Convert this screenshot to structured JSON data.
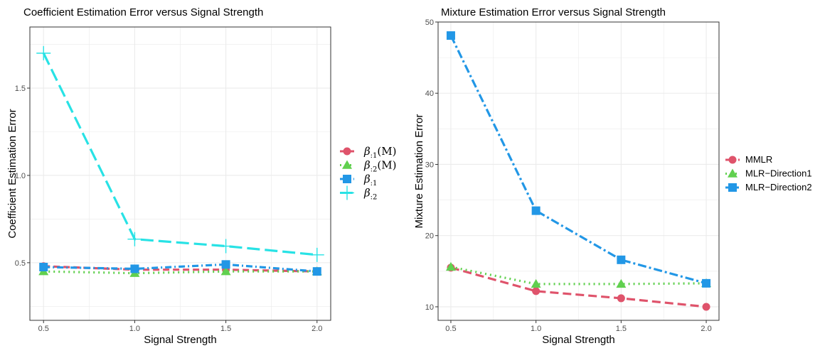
{
  "colors": {
    "red": "#DF536B",
    "green": "#61D04F",
    "blue": "#2297E6",
    "cyan": "#28E2E5",
    "grid": "#EBEBEB",
    "frame": "#333333"
  },
  "chart_data": [
    {
      "type": "line",
      "title": "Coefficient Estimation Error versus Signal Strength",
      "xlabel": "Signal Strength",
      "ylabel": "Coefficient Estimation Error",
      "xlim": [
        0.425,
        2.075
      ],
      "ylim": [
        0.17,
        1.85
      ],
      "xticks": [
        "0.5",
        "1.0",
        "1.5",
        "2.0"
      ],
      "xtick_values": [
        0.5,
        1.0,
        1.5,
        2.0
      ],
      "yticks": [
        "0.5",
        "1.0",
        "1.5"
      ],
      "ytick_values": [
        0.5,
        1.0,
        1.5
      ],
      "grid": true,
      "legend_position": "right",
      "x": [
        0.5,
        1.0,
        1.5,
        2.0
      ],
      "series": [
        {
          "legend_main": "β",
          "legend_sub": ":1",
          "legend_suffix": "(M)",
          "marker": "circle",
          "color": "red",
          "dash": "9,5",
          "values": [
            0.48,
            0.46,
            0.46,
            0.45
          ]
        },
        {
          "legend_main": "β",
          "legend_sub": ":2",
          "legend_suffix": "(M)",
          "marker": "triangle",
          "color": "green",
          "dash": "2,5",
          "values": [
            0.45,
            0.44,
            0.45,
            0.45
          ]
        },
        {
          "legend_main": "β",
          "legend_sub": ":1",
          "legend_suffix": "",
          "marker": "square",
          "color": "blue",
          "dash": "9,4,2,4",
          "values": [
            0.475,
            0.465,
            0.49,
            0.45
          ]
        },
        {
          "legend_main": "β",
          "legend_sub": ":2",
          "legend_suffix": "",
          "marker": "plus",
          "color": "cyan",
          "dash": "18,7",
          "values": [
            1.7,
            0.635,
            0.595,
            0.545
          ]
        }
      ]
    },
    {
      "type": "line",
      "title": "Mixture Estimation Error versus Signal Strength",
      "xlabel": "Signal Strength",
      "ylabel": "Mixture Estimation Error",
      "xlim": [
        0.425,
        2.075
      ],
      "ylim": [
        8.1,
        50
      ],
      "xticks": [
        "0.5",
        "1.0",
        "1.5",
        "2.0"
      ],
      "xtick_values": [
        0.5,
        1.0,
        1.5,
        2.0
      ],
      "yticks": [
        "10",
        "20",
        "30",
        "40",
        "50"
      ],
      "ytick_values": [
        10,
        20,
        30,
        40,
        50
      ],
      "grid": true,
      "legend_position": "right",
      "x": [
        0.5,
        1.0,
        1.5,
        2.0
      ],
      "series": [
        {
          "name": "MMLR",
          "marker": "circle",
          "color": "red",
          "dash": "12,6",
          "values": [
            15.5,
            12.2,
            11.2,
            10.0
          ]
        },
        {
          "name": "MLR−Direction1",
          "marker": "triangle",
          "color": "green",
          "dash": "2,5",
          "values": [
            15.6,
            13.2,
            13.2,
            13.3
          ]
        },
        {
          "name": "MLR−Direction2",
          "marker": "square",
          "color": "blue",
          "dash": "12,4,3,4",
          "values": [
            48.1,
            23.5,
            16.6,
            13.3
          ]
        }
      ]
    }
  ]
}
